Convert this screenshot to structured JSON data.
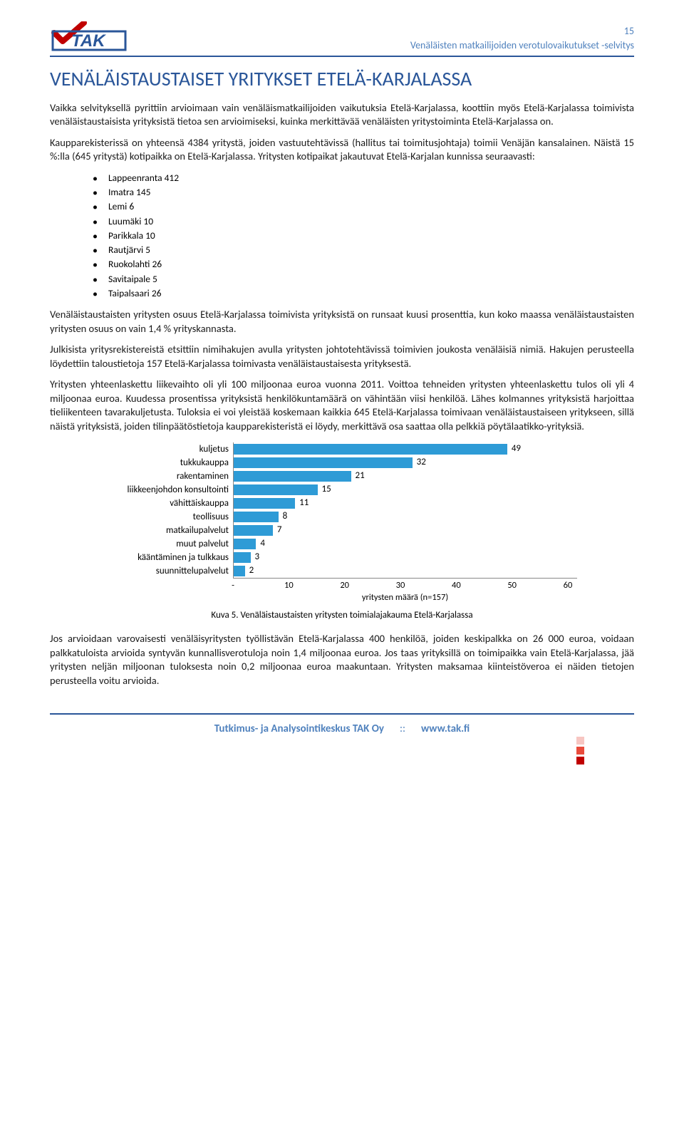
{
  "header": {
    "page_number": "15",
    "subtitle": "Venäläisten matkailijoiden verotulovaikutukset -selvitys",
    "logo_text": "TAK",
    "logo_blue": "#2a5699",
    "logo_red": "#c00000"
  },
  "title": "VENÄLÄISTAUSTAISET YRITYKSET ETELÄ-KARJALASSA",
  "paragraphs": {
    "p1": "Vaikka selvityksellä pyrittiin arvioimaan vain venäläismatkailijoiden vaikutuksia Etelä-Karjalassa, koottiin myös Etelä-Karjalassa toimivista venäläistaustaisista yrityksistä tietoa sen arvioimiseksi, kuinka merkittävää venäläisten yritystoiminta Etelä-Karjalassa on.",
    "p2": "Kaupparekisterissä on yhteensä 4384 yritystä, joiden vastuutehtävissä (hallitus tai toimitusjohtaja) toimii Venäjän kansalainen. Näistä 15 %:lla (645 yritystä) kotipaikka on Etelä-Karjalassa. Yritysten kotipaikat jakautuvat Etelä-Karjalan kunnissa seuraavasti:",
    "p3": "Venäläistaustaisten yritysten osuus Etelä-Karjalassa toimivista yrityksistä on runsaat kuusi prosenttia, kun koko maassa venäläistaustaisten yritysten osuus on vain 1,4 % yrityskannasta.",
    "p4": "Julkisista yritysrekistereistä etsittiin nimihakujen avulla yritysten johtotehtävissä toimivien joukosta venäläisiä nimiä. Hakujen perusteella löydettiin taloustietoja 157 Etelä-Karjalassa toimivasta venäläistaustaisesta yrityksestä.",
    "p5": "Yritysten yhteenlaskettu liikevaihto oli yli 100 miljoonaa euroa vuonna 2011. Voittoa tehneiden yritysten yhteenlaskettu tulos oli yli 4 miljoonaa euroa. Kuudessa prosentissa yrityksistä henkilökuntamäärä on vähintään viisi henkilöä. Lähes kolmannes yrityksistä harjoittaa tieliikenteen tavarakuljetusta. Tuloksia ei voi yleistää koskemaan kaikkia 645 Etelä-Karjalassa toimivaan venäläistaustaiseen yritykseen, sillä näistä yrityksistä, joiden tilinpäätöstietoja kaupparekisteristä ei löydy, merkittävä osa saattaa olla pelkkiä pöytälaatikko-yrityksiä.",
    "p6": "Jos arvioidaan varovaisesti venäläisyritysten työllistävän Etelä-Karjalassa 400 henkilöä, joiden keskipalkka on 26 000 euroa, voidaan palkkatuloista arvioida syntyvän kunnallisverotuloja noin 1,4 miljoonaa euroa. Jos taas yrityksillä on toimipaikka vain Etelä-Karjalassa, jää yritysten neljän miljoonan tuloksesta noin 0,2 miljoonaa euroa maakuntaan. Yritysten maksamaa kiinteistöveroa ei näiden tietojen perusteella voitu arvioida."
  },
  "bullets": [
    "Lappeenranta 412",
    "Imatra 145",
    "Lemi 6",
    "Luumäki 10",
    "Parikkala 10",
    "Rautjärvi 5",
    "Ruokolahti 26",
    "Savitaipale 5",
    "Taipalsaari 26"
  ],
  "chart": {
    "type": "bar-horizontal",
    "bar_color": "#2e9bd6",
    "axis_color": "#888888",
    "text_color": "#000000",
    "xmax": 60,
    "xtick_step": 10,
    "xticks": [
      "-",
      "10",
      "20",
      "30",
      "40",
      "50",
      "60"
    ],
    "x_axis_title": "yritysten määrä (n=157)",
    "categories": [
      {
        "label": "kuljetus",
        "value": 49
      },
      {
        "label": "tukkukauppa",
        "value": 32
      },
      {
        "label": "rakentaminen",
        "value": 21
      },
      {
        "label": "liikkeenjohdon konsultointi",
        "value": 15
      },
      {
        "label": "vähittäiskauppa",
        "value": 11
      },
      {
        "label": "teollisuus",
        "value": 8
      },
      {
        "label": "matkailupalvelut",
        "value": 7
      },
      {
        "label": "muut palvelut",
        "value": 4
      },
      {
        "label": "kääntäminen ja tulkkaus",
        "value": 3
      },
      {
        "label": "suunnittelupalvelut",
        "value": 2
      }
    ],
    "caption": "Kuva 5. Venäläistaustaisten yritysten toimialajakauma Etelä-Karjalassa"
  },
  "footer": {
    "company": "Tutkimus- ja Analysointikeskus TAK Oy",
    "sep": "::",
    "url": "www.tak.fi",
    "sq_colors": [
      "#f7c6c2",
      "#e94b3c",
      "#c00000"
    ]
  }
}
